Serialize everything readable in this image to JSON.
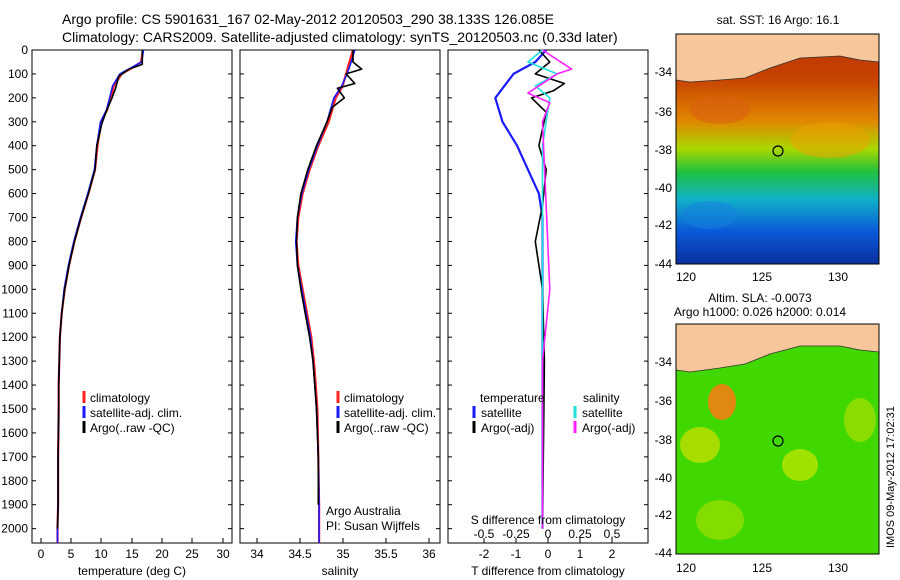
{
  "header": {
    "line1": "Argo profile: CS 5901631_167 02-May-2012 20120503_290 38.133S 126.085E",
    "line2": "Climatology: CARS2009. Satellite-adjusted climatology: synTS_20120503.nc (0.33d later)"
  },
  "colors": {
    "climatology": "#ff2020",
    "satellite": "#1a1aff",
    "argo": "#000000",
    "satellite_s": "#20e0e0",
    "argo_s": "#ff20ff",
    "land": "#f7c69a"
  },
  "depth_ticks": [
    "0",
    "100",
    "200",
    "300",
    "400",
    "500",
    "600",
    "700",
    "800",
    "900",
    "1000",
    "1100",
    "1200",
    "1300",
    "1400",
    "1500",
    "1600",
    "1700",
    "1800",
    "1900",
    "2000"
  ],
  "temp_panel": {
    "xlabel": "temperature (deg C)",
    "xticks": [
      "0",
      "5",
      "10",
      "15",
      "20",
      "25",
      "30"
    ],
    "legend": [
      "climatology",
      "satellite-adj. clim.",
      "Argo(..raw -QC)"
    ]
  },
  "sal_panel": {
    "xlabel": "salinity",
    "xticks": [
      "34",
      "34.5",
      "35",
      "35.5",
      "36"
    ],
    "legend": [
      "climatology",
      "satellite-adj. clim.",
      "Argo(..raw -QC)"
    ],
    "note1": "Argo Australia",
    "note2": "PI: Susan Wijffels"
  },
  "diff_panel": {
    "legend_temp_head": "temperature",
    "legend_sal_head": "salinity",
    "legend_items": [
      "satellite",
      "Argo(-adj)",
      "satellite",
      "Argo(-adj)"
    ],
    "s_label": "S difference from climatology",
    "s_ticks": [
      "-0.5",
      "-0.25",
      "0",
      "0.25",
      "0.5"
    ],
    "t_ticks": [
      "-2",
      "-1",
      "0",
      "1",
      "2"
    ],
    "xlabel": "T difference from climatology"
  },
  "map1": {
    "title": "sat. SST: 16 Argo: 16.1",
    "yticks": [
      "-34",
      "-36",
      "-38",
      "-40",
      "-42",
      "-44"
    ],
    "xticks": [
      "120",
      "125",
      "130"
    ]
  },
  "map2": {
    "title1": "Altim. SLA: -0.0073",
    "title2": "Argo h1000: 0.026 h2000: 0.014",
    "yticks": [
      "-34",
      "-36",
      "-38",
      "-40",
      "-42",
      "-44"
    ],
    "xticks": [
      "120",
      "125",
      "130"
    ]
  },
  "stamp": "IMOS 09-May-2012 17:02:31",
  "chart_data": [
    {
      "type": "line",
      "xlabel": "temperature (deg C)",
      "ylabel": "",
      "xlim": [
        -2,
        31
      ],
      "ylim": [
        2060,
        0
      ],
      "series": [
        {
          "name": "climatology",
          "x": [
            16.3,
            16.0,
            14.5,
            12.8,
            11.5,
            11.0,
            10.4,
            9.4,
            8.8,
            8.4,
            7.3,
            6.1,
            5.0,
            4.1,
            3.4,
            2.9,
            2.6,
            2.5,
            2.4,
            2.4,
            2.3,
            2.3,
            2.2,
            2.2
          ],
          "y": [
            0,
            50,
            75,
            100,
            150,
            200,
            250,
            300,
            400,
            500,
            600,
            700,
            800,
            900,
            1000,
            1100,
            1200,
            1300,
            1400,
            1500,
            1700,
            1900,
            2000,
            2060
          ]
        },
        {
          "name": "satellite-adj. clim.",
          "x": [
            16.4,
            16.1,
            14.3,
            12.5,
            11.3,
            10.8,
            10.3,
            9.3,
            8.7,
            8.3,
            7.2,
            6.0,
            4.9,
            4.0,
            3.3,
            2.9,
            2.6,
            2.5,
            2.4,
            2.4,
            2.3,
            2.3,
            2.2,
            2.2
          ],
          "y": [
            0,
            50,
            75,
            100,
            150,
            200,
            250,
            300,
            400,
            500,
            600,
            700,
            800,
            900,
            1000,
            1100,
            1200,
            1300,
            1400,
            1500,
            1700,
            1900,
            2000,
            2060
          ]
        },
        {
          "name": "Argo(..raw -QC)",
          "x": [
            16.2,
            16.2,
            14.0,
            12.3,
            11.8,
            11.2,
            10.2,
            9.5,
            8.7,
            8.4,
            7.3,
            6.1,
            5.0,
            4.1,
            3.4,
            2.9,
            2.6,
            2.5,
            2.4,
            2.4,
            2.3,
            2.3,
            2.2
          ],
          "y": [
            0,
            60,
            80,
            110,
            160,
            200,
            260,
            310,
            400,
            500,
            600,
            700,
            800,
            900,
            1000,
            1100,
            1200,
            1300,
            1400,
            1500,
            1700,
            1900,
            2000
          ]
        }
      ]
    },
    {
      "type": "line",
      "xlabel": "salinity",
      "ylabel": "",
      "xlim": [
        33.8,
        36.1
      ],
      "ylim": [
        2060,
        0
      ],
      "series": [
        {
          "name": "climatology",
          "x": [
            35.1,
            35.05,
            35.02,
            34.98,
            34.9,
            34.82,
            34.7,
            34.6,
            34.52,
            34.47,
            34.45,
            34.47,
            34.52,
            34.57,
            34.62,
            34.65,
            34.67,
            34.69,
            34.7,
            34.71,
            34.71
          ],
          "y": [
            0,
            60,
            100,
            150,
            200,
            300,
            400,
            500,
            600,
            700,
            800,
            900,
            1000,
            1100,
            1200,
            1300,
            1400,
            1500,
            1700,
            1900,
            2060
          ]
        },
        {
          "name": "satellite-adj. clim.",
          "x": [
            35.12,
            35.07,
            35.03,
            34.97,
            34.88,
            34.8,
            34.69,
            34.59,
            34.51,
            34.46,
            34.44,
            34.46,
            34.51,
            34.56,
            34.61,
            34.64,
            34.66,
            34.68,
            34.7,
            34.71,
            34.71
          ],
          "y": [
            0,
            60,
            100,
            150,
            200,
            300,
            400,
            500,
            600,
            700,
            800,
            900,
            1000,
            1100,
            1200,
            1300,
            1400,
            1500,
            1700,
            1900,
            2060
          ]
        },
        {
          "name": "Argo(..raw -QC)",
          "x": [
            35.1,
            35.1,
            35.2,
            35.02,
            35.12,
            34.92,
            35.0,
            34.86,
            34.8,
            34.68,
            34.58,
            34.5,
            34.46,
            34.45,
            34.46,
            34.5,
            34.55,
            34.6,
            34.64,
            34.66,
            34.68,
            34.7,
            34.7
          ],
          "y": [
            0,
            50,
            80,
            100,
            140,
            160,
            200,
            240,
            300,
            400,
            500,
            600,
            700,
            800,
            900,
            1000,
            1100,
            1200,
            1300,
            1400,
            1500,
            1700,
            1900
          ]
        }
      ]
    },
    {
      "type": "line",
      "xlabel": "T difference from climatology",
      "ylabel": "",
      "xlim": [
        -2.6,
        2.9
      ],
      "ylim": [
        2060,
        0
      ],
      "secondary_x_label": "S difference from climatology",
      "secondary_xlim": [
        -0.65,
        0.725
      ],
      "series": [
        {
          "name": "temperature satellite",
          "x": [
            0.1,
            -0.2,
            -0.8,
            -1.3,
            -1.1,
            -0.7,
            -0.4,
            -0.1,
            0,
            0
          ],
          "y": [
            0,
            50,
            100,
            200,
            300,
            400,
            500,
            600,
            700,
            2000
          ]
        },
        {
          "name": "temperature Argo(-adj)",
          "x": [
            -0.1,
            0.2,
            -0.2,
            0.6,
            0.3,
            -0.3,
            0.1,
            -0.1,
            0.1,
            0,
            -0.2,
            -0.1,
            0,
            0.05,
            0
          ],
          "y": [
            0,
            50,
            100,
            140,
            170,
            200,
            260,
            400,
            500,
            650,
            800,
            900,
            1000,
            1300,
            2000
          ]
        },
        {
          "name": "salinity satellite",
          "x": [
            0.0,
            -0.1,
            0.1,
            -0.05,
            0.05,
            0,
            0
          ],
          "y": [
            0,
            50,
            100,
            150,
            200,
            400,
            2000
          ]
        },
        {
          "name": "salinity Argo(-adj)",
          "x": [
            0.0,
            0.2,
            0.1,
            -0.1,
            0.05,
            0,
            0.05,
            0,
            0
          ],
          "y": [
            0,
            80,
            100,
            180,
            220,
            300,
            1000,
            1300,
            2000
          ]
        }
      ]
    }
  ]
}
